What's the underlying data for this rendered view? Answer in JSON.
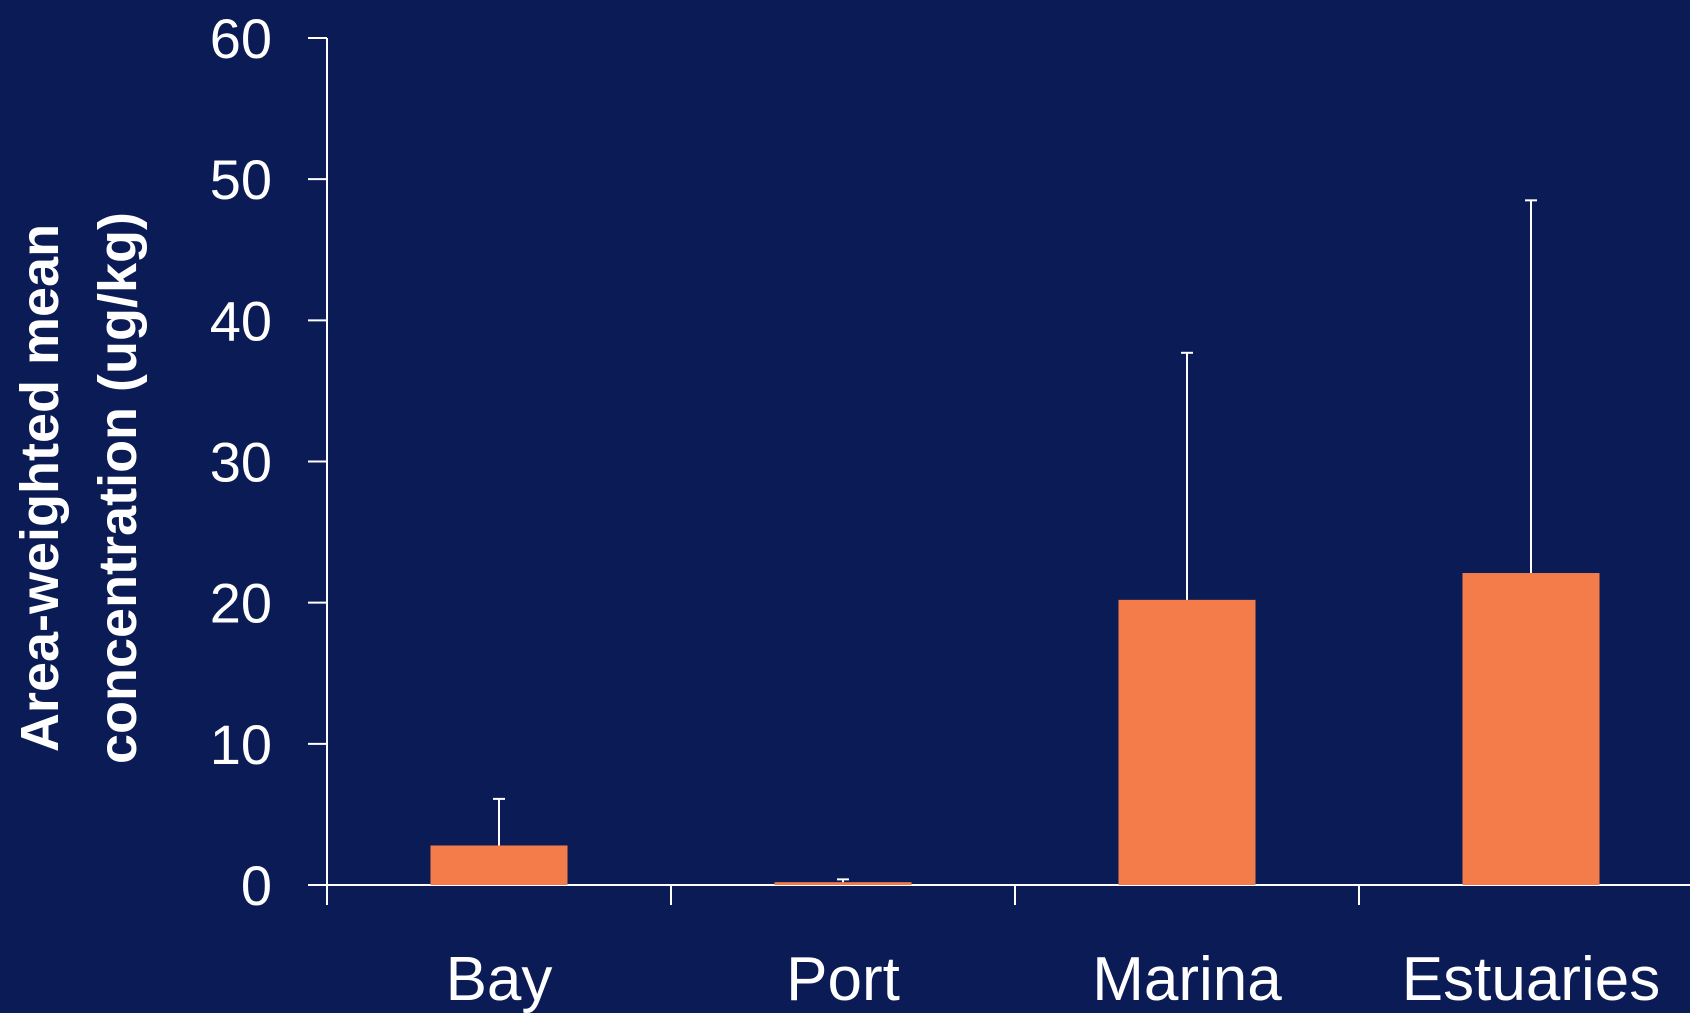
{
  "chart_data": {
    "type": "bar",
    "title": "",
    "xlabel": "",
    "ylabel_lines": [
      "Area-weighted mean",
      "concentration (ug/kg)"
    ],
    "categories": [
      "Bay",
      "Port",
      "Marina",
      "Estuaries"
    ],
    "values": [
      2.8,
      0.2,
      20.2,
      22.1
    ],
    "error_upper": [
      6.1,
      0.4,
      37.7,
      48.5
    ],
    "ylim": [
      0,
      60
    ],
    "yticks": [
      0,
      10,
      20,
      30,
      40,
      50,
      60
    ],
    "grid": false,
    "legend": "none"
  },
  "colors": {
    "background": "#0b1b55",
    "bar": "#f47c4a",
    "axis": "#ffffff",
    "text": "#ffffff"
  }
}
